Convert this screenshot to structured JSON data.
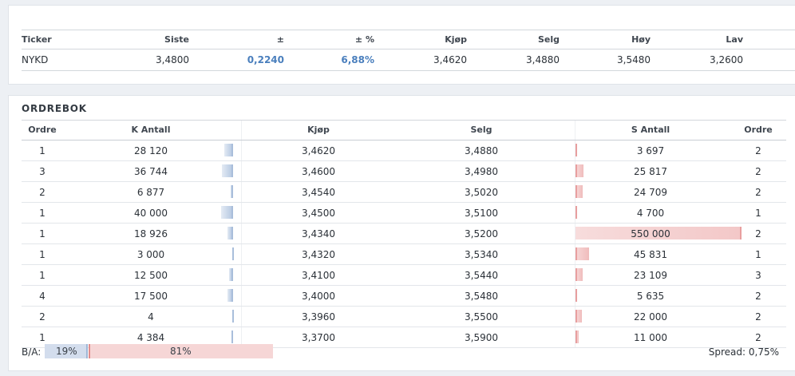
{
  "quote": {
    "headers": [
      "Ticker",
      "Siste",
      "±",
      "± %",
      "Kjøp",
      "Selg",
      "Høy",
      "Lav"
    ],
    "row": [
      "NYKD",
      "3,4800",
      "0,2240",
      "6,88%",
      "3,4620",
      "3,4880",
      "3,5480",
      "3,2600"
    ]
  },
  "orderbook": {
    "title": "ORDREBOK",
    "headers": [
      "Ordre",
      "K Antall",
      "Kjøp",
      "Selg",
      "S Antall",
      "Ordre"
    ],
    "rows": [
      [
        "1",
        "28 120",
        "3,4620",
        "3,4880",
        "3 697",
        "2"
      ],
      [
        "3",
        "36 744",
        "3,4600",
        "3,4980",
        "25 817",
        "2"
      ],
      [
        "2",
        "6 877",
        "3,4540",
        "3,5020",
        "24 709",
        "2"
      ],
      [
        "1",
        "40 000",
        "3,4500",
        "3,5100",
        "4 700",
        "1"
      ],
      [
        "1",
        "18 926",
        "3,4340",
        "3,5200",
        "550 000",
        "2"
      ],
      [
        "1",
        "3 000",
        "3,4320",
        "3,5340",
        "45 831",
        "1"
      ],
      [
        "1",
        "12 500",
        "3,4100",
        "3,5440",
        "23 109",
        "3"
      ],
      [
        "4",
        "17 500",
        "3,4000",
        "3,5480",
        "5 635",
        "2"
      ],
      [
        "2",
        "4",
        "3,3960",
        "3,5500",
        "22 000",
        "2"
      ],
      [
        "1",
        "4 384",
        "3,3700",
        "3,5900",
        "11 000",
        "2"
      ]
    ],
    "ba_label": "B/A:",
    "bid_pct_label": "19%",
    "ask_pct_label": "81%",
    "bid_fraction": 0.19,
    "spread_label": "Spread:",
    "spread_value": "0,75%"
  },
  "colors": {
    "positive": "#4a7fbd",
    "bid_bar": "#b9cbe3",
    "ask_bar": "#f0bcbc"
  }
}
